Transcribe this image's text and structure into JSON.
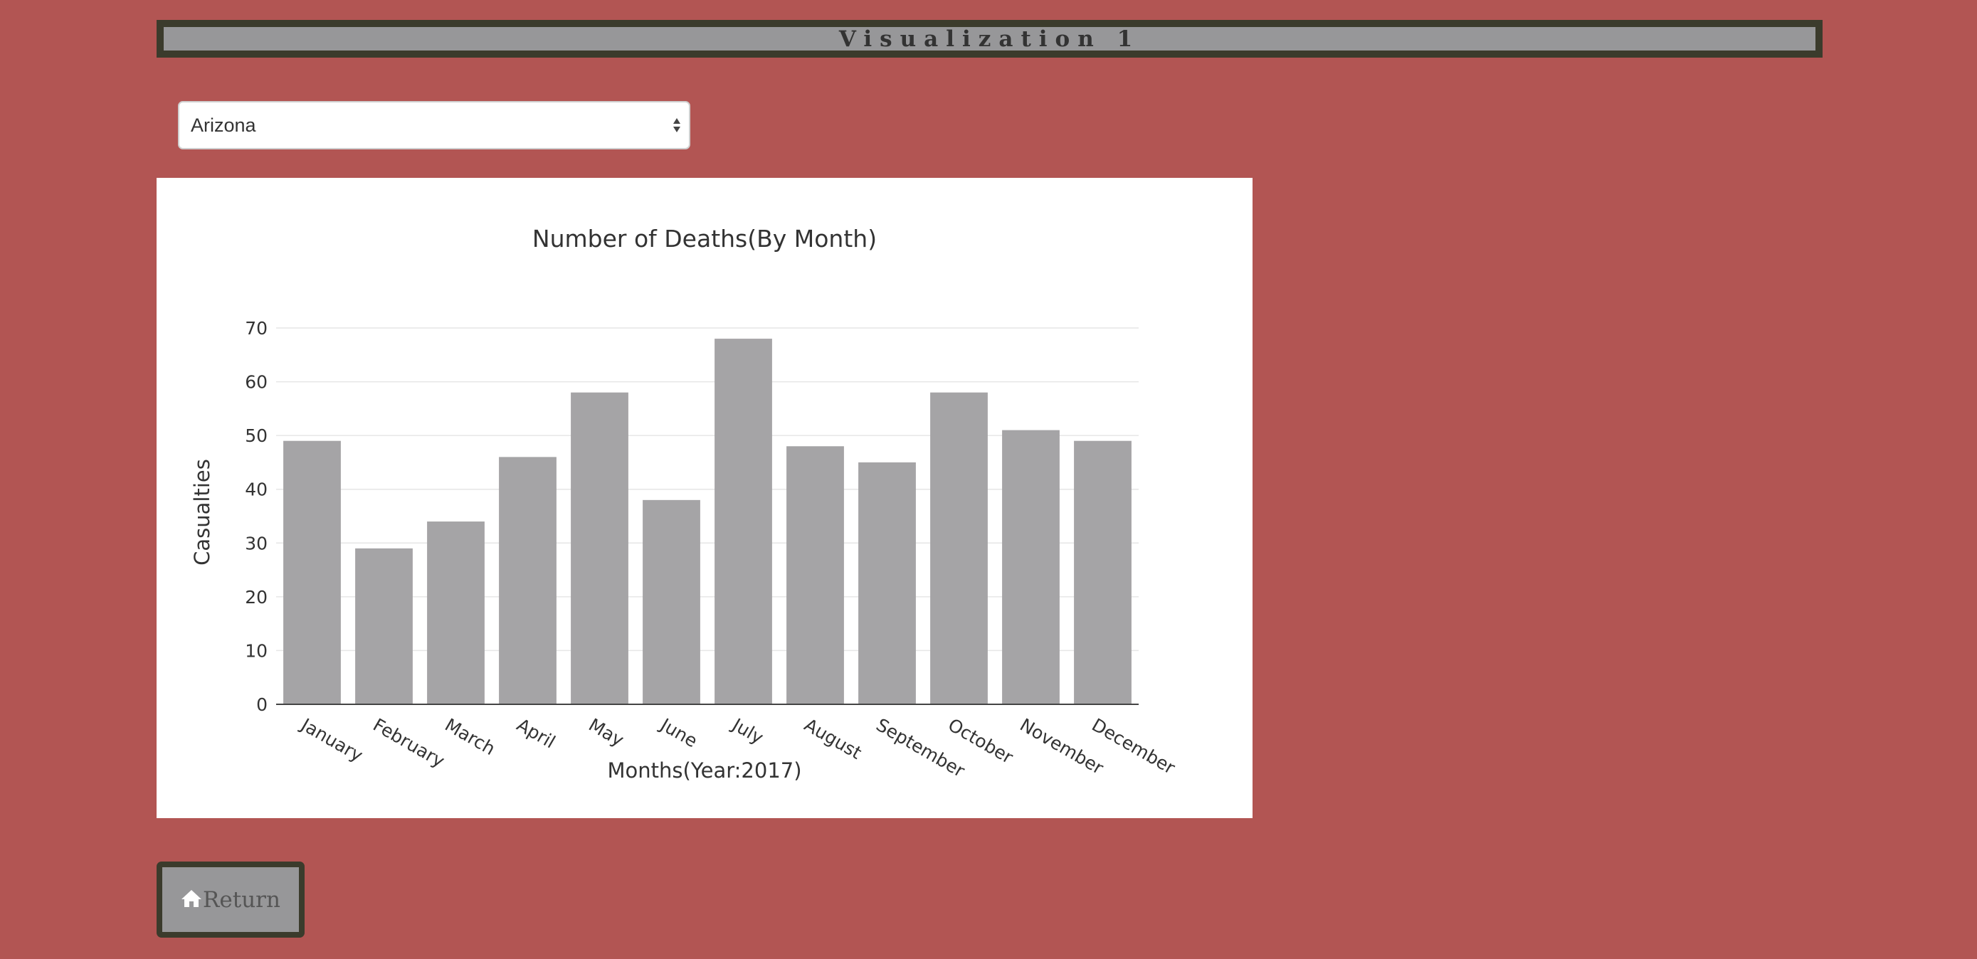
{
  "header": {
    "title": "Visualization 1"
  },
  "state_select": {
    "selected": "Arizona"
  },
  "return_button": {
    "label": "Return",
    "icon": "home-icon"
  },
  "colors": {
    "background": "#b25553",
    "bar": "#a5a4a6",
    "header_border": "#3b3b2c",
    "header_fill": "#979799"
  },
  "chart_data": {
    "type": "bar",
    "title": "Number of Deaths(By Month)",
    "xlabel": "Months(Year:2017)",
    "ylabel": "Casualties",
    "categories": [
      "January",
      "February",
      "March",
      "April",
      "May",
      "June",
      "July",
      "August",
      "September",
      "October",
      "November",
      "December"
    ],
    "values": [
      49,
      29,
      34,
      46,
      58,
      38,
      68,
      48,
      45,
      58,
      51,
      49
    ],
    "ylim": [
      0,
      70
    ],
    "yticks": [
      0,
      10,
      20,
      30,
      40,
      50,
      60,
      70
    ],
    "grid": true,
    "legend": "none"
  }
}
